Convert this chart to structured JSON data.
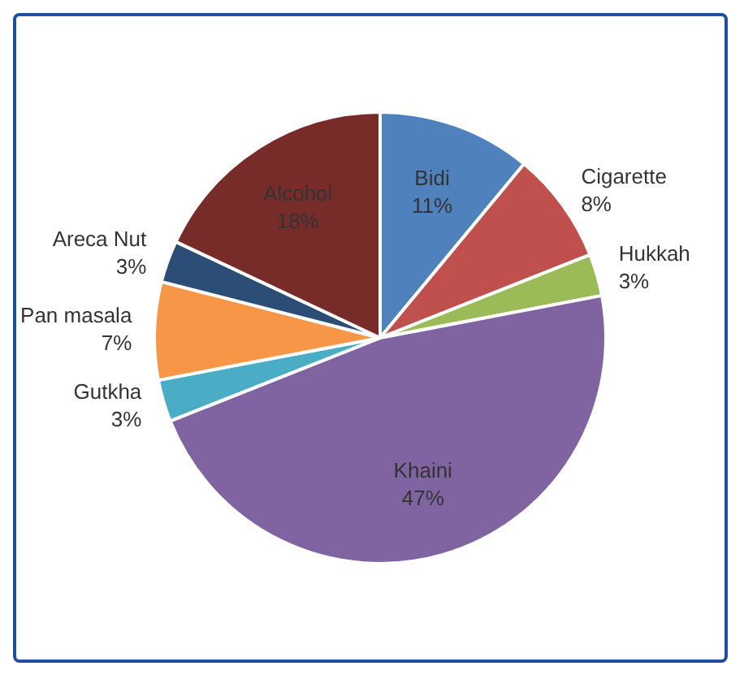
{
  "chart_data": {
    "type": "pie",
    "categories": [
      "Bidi",
      "Cigarette",
      "Hukkah",
      "Khaini",
      "Gutkha",
      "Pan masala",
      "Areca Nut",
      "Alcohol"
    ],
    "values": [
      11,
      8,
      3,
      47,
      3,
      7,
      3,
      18
    ],
    "value_labels": [
      "11%",
      "8%",
      "3%",
      "47%",
      "3%",
      "7%",
      "3%",
      "18%"
    ],
    "colors": [
      "#4f81bd",
      "#c0504d",
      "#9bbb59",
      "#8064a2",
      "#4bacc6",
      "#f79646",
      "#2c4d75",
      "#772c2a"
    ],
    "legend": false
  }
}
